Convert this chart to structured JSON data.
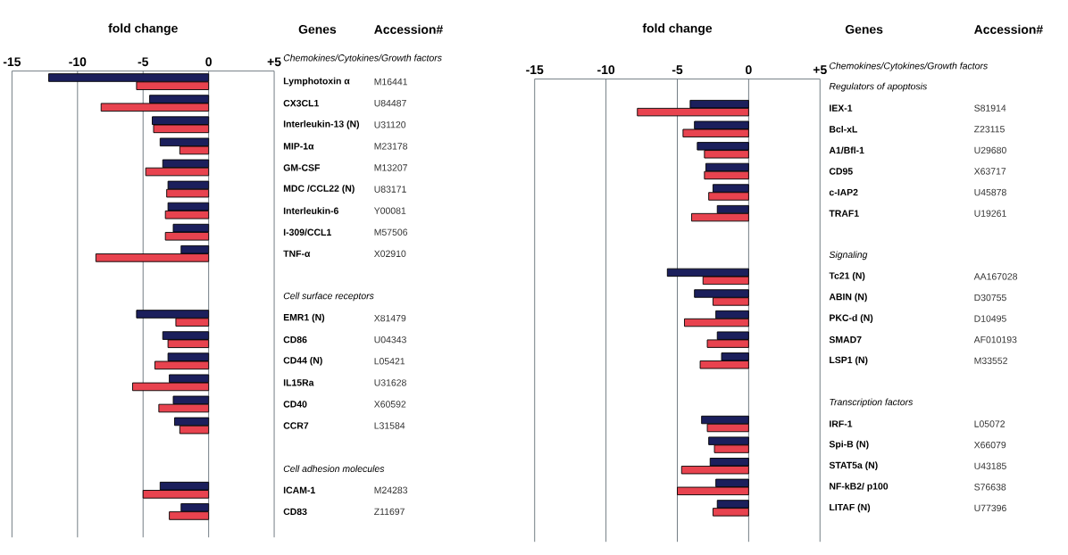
{
  "chart_data": [
    {
      "type": "bar",
      "orientation": "horizontal",
      "xlabel": "fold change",
      "ylabel": "Genes",
      "y2label": "Accession#",
      "subtitle": "Chemokines/Cytokines/Growth factors",
      "categories": [
        "Lymphotoxin α",
        "CX3CL1",
        "Interleukin-13 (N)",
        "MIP-1α",
        "GM-CSF",
        "MDC /CCL22 (N)",
        "Interleukin-6",
        "I-309/CCL1",
        "TNF-α",
        null,
        null,
        "EMR1 (N)",
        "CD86",
        "CD44 (N)",
        "IL15Ra",
        "CD40",
        "CCR7",
        null,
        null,
        "ICAM-1",
        "CD83"
      ],
      "y2_categories": [
        "M16441",
        "U84487",
        "U31120",
        "M23178",
        "M13207",
        "U83171",
        "Y00081",
        "M57506",
        "X02910",
        null,
        null,
        "X81479",
        "U04343",
        "L05421",
        "U31628",
        "X60592",
        "L31584",
        null,
        null,
        "M24283",
        "Z11697"
      ],
      "annotations": [
        "Cell surface receptors",
        "Cell adhesion molecules"
      ],
      "series": [
        {
          "color": "#1b1f5c",
          "values": [
            -12.2,
            -4.5,
            -4.3,
            -3.7,
            -3.5,
            -3.1,
            -3.1,
            -2.7,
            -2.1,
            null,
            null,
            -5.5,
            -3.5,
            -3.1,
            -3.0,
            -2.7,
            -2.6,
            null,
            null,
            -3.7,
            -2.1
          ]
        },
        {
          "color": "#e8434f",
          "values": [
            -5.5,
            -8.2,
            -4.2,
            -2.2,
            -4.8,
            -3.2,
            -3.3,
            -3.3,
            -8.6,
            null,
            null,
            -2.5,
            -3.1,
            -4.1,
            -5.8,
            -3.8,
            -2.2,
            null,
            null,
            -5.0,
            -3.0
          ]
        }
      ],
      "xlim": [
        -15,
        5
      ],
      "xticks": [
        -15,
        -10,
        -5,
        0,
        {
          "value": 5,
          "label": "+5"
        }
      ],
      "grid": "x"
    },
    {
      "type": "bar",
      "orientation": "horizontal",
      "xlabel": "fold change",
      "ylabel": "Genes",
      "y2label": "Accession#",
      "subtitle": "Chemokines/Cytokines/Growth factors",
      "categories": [
        null,
        "IEX-1",
        "Bcl-xL",
        "A1/Bfl-1",
        "CD95",
        "c-IAP2",
        "TRAF1",
        null,
        null,
        "Tc21 (N)",
        "ABIN (N)",
        "PKC-d (N)",
        "SMAD7",
        "LSP1 (N)",
        null,
        null,
        "IRF-1",
        "Spi-B (N)",
        "STAT5a (N)",
        "NF-kB2/ p100",
        "LITAF (N)"
      ],
      "y2_categories": [
        null,
        "S81914",
        "Z23115",
        "U29680",
        "X63717",
        "U45878",
        "U19261",
        null,
        null,
        "AA167028",
        "D30755",
        "D10495",
        "AF010193",
        "M33552",
        null,
        null,
        "L05072",
        "X66079",
        "U43185",
        "S76638",
        "U77396"
      ],
      "annotations": [
        "Regulators of apoptosis",
        "Signaling",
        "Transcription factors"
      ],
      "series": [
        {
          "color": "#1b1f5c",
          "values": [
            null,
            -4.1,
            -3.8,
            -3.6,
            -3.0,
            -2.5,
            -2.2,
            null,
            null,
            -5.7,
            -3.8,
            -2.3,
            -2.2,
            -1.9,
            null,
            null,
            -3.3,
            -2.8,
            -2.7,
            -2.3,
            -2.2
          ]
        },
        {
          "color": "#e8434f",
          "values": [
            null,
            -7.8,
            -4.6,
            -3.1,
            -3.1,
            -2.8,
            -4.0,
            null,
            null,
            -3.2,
            -2.5,
            -4.5,
            -2.9,
            -3.4,
            null,
            null,
            -2.9,
            -2.4,
            -4.7,
            -5.0,
            -2.5
          ]
        }
      ],
      "xlim": [
        -15,
        5
      ],
      "xticks": [
        -15,
        -10,
        -5,
        0,
        {
          "value": 5,
          "label": "+5"
        }
      ],
      "grid": "x"
    }
  ]
}
